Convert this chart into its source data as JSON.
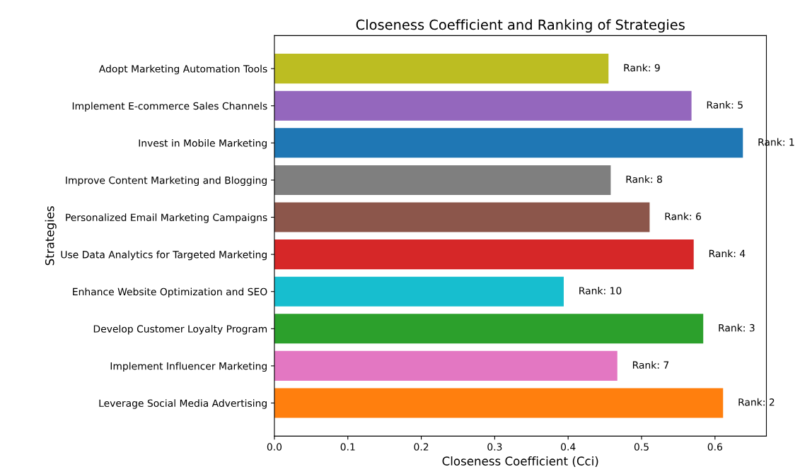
{
  "chart_data": {
    "type": "bar",
    "orientation": "horizontal",
    "title": "Closeness Coefficient and Ranking of Strategies",
    "xlabel": "Closeness Coefficient (Cci)",
    "ylabel": "Strategies",
    "categories": [
      "Adopt Marketing Automation Tools",
      "Implement E-commerce Sales Channels",
      "Invest in Mobile Marketing",
      "Improve Content Marketing and Blogging",
      "Personalized Email Marketing Campaigns",
      "Use Data Analytics for Targeted Marketing",
      "Enhance Website Optimization and SEO",
      "Develop Customer Loyalty Program",
      "Implement Influencer Marketing",
      "Leverage Social Media Advertising"
    ],
    "values": [
      0.455,
      0.568,
      0.638,
      0.458,
      0.511,
      0.571,
      0.394,
      0.584,
      0.467,
      0.611
    ],
    "colors": [
      "#bcbd22",
      "#9467bd",
      "#1f77b4",
      "#7f7f7f",
      "#8c564b",
      "#d62728",
      "#17becf",
      "#2ca02c",
      "#e377c2",
      "#ff7f0e"
    ],
    "annotations": [
      {
        "text": "Rank: 9",
        "x": 0.455,
        "y": "Adopt Marketing Automation Tools"
      },
      {
        "text": "Rank: 5",
        "x": 0.568,
        "y": "Implement E-commerce Sales Channels"
      },
      {
        "text": "Rank: 1",
        "x": 0.638,
        "y": "Invest in Mobile Marketing"
      },
      {
        "text": "Rank: 8",
        "x": 0.458,
        "y": "Improve Content Marketing and Blogging"
      },
      {
        "text": "Rank: 6",
        "x": 0.511,
        "y": "Personalized Email Marketing Campaigns"
      },
      {
        "text": "Rank: 4",
        "x": 0.571,
        "y": "Use Data Analytics for Targeted Marketing"
      },
      {
        "text": "Rank: 10",
        "x": 0.394,
        "y": "Enhance Website Optimization and SEO"
      },
      {
        "text": "Rank: 3",
        "x": 0.584,
        "y": "Develop Customer Loyalty Program"
      },
      {
        "text": "Rank: 7",
        "x": 0.467,
        "y": "Implement Influencer Marketing"
      },
      {
        "text": "Rank: 2",
        "x": 0.611,
        "y": "Leverage Social Media Advertising"
      }
    ],
    "xlim": [
      0,
      0.67
    ],
    "xticks": [
      {
        "value": 0,
        "label": "0.0"
      },
      0.1,
      0.2,
      0.3,
      0.4,
      0.5,
      0.6
    ]
  }
}
